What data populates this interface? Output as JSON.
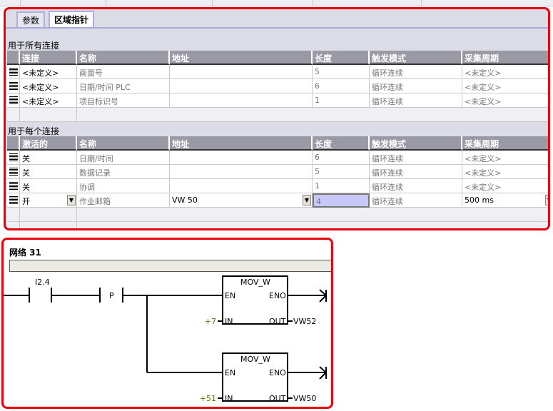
{
  "tabs": [
    {
      "label": "参数",
      "active": false
    },
    {
      "label": "区域指针",
      "active": true
    }
  ],
  "section_all": {
    "title": "用于所有连接",
    "columns": [
      "连接",
      "名称",
      "地址",
      "长度",
      "触发模式",
      "采集周期"
    ],
    "rows": [
      [
        "<未定义>",
        "画面号",
        "",
        "5",
        "循环连续",
        "<未定义>"
      ],
      [
        "<未定义>",
        "日期/时间 PLC",
        "",
        "6",
        "循环连续",
        "<未定义>"
      ],
      [
        "<未定义>",
        "项目标识号",
        "",
        "1",
        "循环连续",
        "<未定义>"
      ]
    ]
  },
  "section_each": {
    "title": "用于每个连接",
    "columns": [
      "激活的",
      "名称",
      "地址",
      "长度",
      "触发模式",
      "采集周期"
    ],
    "rows": [
      [
        "关",
        "日期/时间",
        "",
        "6",
        "循环连续",
        "<未定义>"
      ],
      [
        "关",
        "数据记录",
        "",
        "5",
        "循环连续",
        "<未定义>"
      ],
      [
        "关",
        "协调",
        "",
        "1",
        "循环连续",
        "<未定义>"
      ],
      [
        "开",
        "作业邮箱",
        "VW 50",
        "4",
        "循环连续",
        "500 ms"
      ]
    ]
  },
  "colors": {
    "highlight": "#e8000c",
    "selected_cell": "#c8c8f8",
    "constant": "#6b6b00"
  },
  "ladder": {
    "title": "网络 31",
    "contact": "I2.4",
    "edge": "P",
    "boxes": [
      {
        "name": "MOV_W",
        "en": "EN",
        "eno": "ENO",
        "in_label": "IN",
        "out_label": "OUT",
        "in_value": "+7",
        "out_value": "VW52"
      },
      {
        "name": "MOV_W",
        "en": "EN",
        "eno": "ENO",
        "in_label": "IN",
        "out_label": "OUT",
        "in_value": "+51",
        "out_value": "VW50"
      }
    ]
  }
}
